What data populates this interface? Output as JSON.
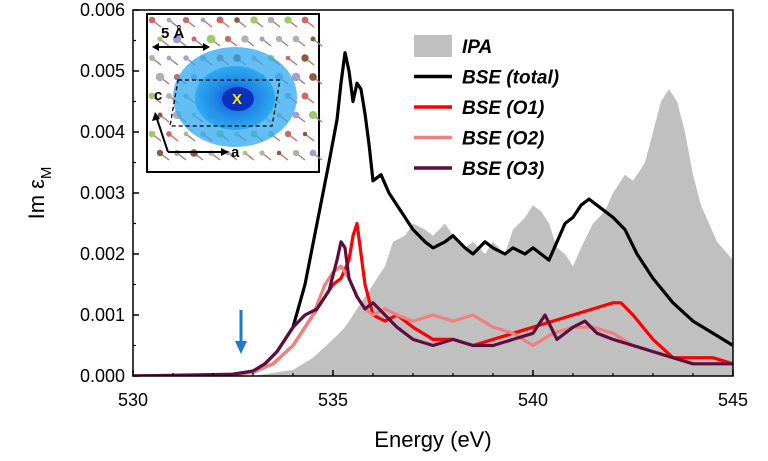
{
  "chart_data": {
    "type": "line",
    "xlabel": "Energy (eV)",
    "ylabel_main": "Im ε",
    "ylabel_sub": "M",
    "xlim": [
      530,
      545
    ],
    "ylim": [
      0,
      0.006
    ],
    "x_ticks": [
      530,
      535,
      540,
      545
    ],
    "x_tick_labels": [
      "530",
      "535",
      "540",
      "545"
    ],
    "y_ticks": [
      0,
      0.001,
      0.002,
      0.003,
      0.004,
      0.005,
      0.006
    ],
    "y_tick_labels": [
      "0.000",
      "0.001",
      "0.002",
      "0.003",
      "0.004",
      "0.005",
      "0.006"
    ],
    "arrow_energy": 532.7,
    "legend_position": "top-right",
    "series": [
      {
        "name": "IPA",
        "style": "area",
        "color": "#c0c0c0",
        "x": [
          530,
          532,
          533,
          533.5,
          534,
          534.5,
          535,
          535.3,
          535.5,
          535.8,
          536,
          536.3,
          536.5,
          536.8,
          537,
          537.3,
          537.5,
          537.8,
          538,
          538.3,
          538.5,
          538.8,
          539,
          539.3,
          539.5,
          539.8,
          540,
          540.2,
          540.4,
          540.6,
          540.8,
          541,
          541.2,
          541.5,
          541.8,
          542,
          542.3,
          542.5,
          542.8,
          543,
          543.2,
          543.4,
          543.6,
          543.8,
          544,
          544.2,
          544.4,
          544.6,
          545
        ],
        "y": [
          0,
          0,
          0.0,
          5e-05,
          0.0001,
          0.0003,
          0.0006,
          0.0008,
          0.001,
          0.0013,
          0.0015,
          0.0018,
          0.0022,
          0.0023,
          0.0025,
          0.0024,
          0.0023,
          0.0025,
          0.0023,
          0.0021,
          0.0022,
          0.002,
          0.0022,
          0.002,
          0.0024,
          0.0026,
          0.0028,
          0.0027,
          0.0025,
          0.0021,
          0.002,
          0.0018,
          0.0021,
          0.0025,
          0.0027,
          0.003,
          0.0033,
          0.0032,
          0.0035,
          0.004,
          0.0045,
          0.0047,
          0.0045,
          0.004,
          0.0033,
          0.0028,
          0.0025,
          0.0022,
          0.0019
        ]
      },
      {
        "name": "BSE (total)",
        "style": "line",
        "color": "#000000",
        "x": [
          530,
          532,
          532.5,
          533,
          533.3,
          533.6,
          534,
          534.3,
          534.6,
          534.9,
          535.1,
          535.2,
          535.3,
          535.4,
          535.5,
          535.6,
          535.7,
          535.8,
          535.9,
          536,
          536.2,
          536.4,
          536.6,
          536.8,
          537,
          537.3,
          537.5,
          537.8,
          538,
          538.3,
          538.5,
          538.8,
          539,
          539.3,
          539.5,
          539.8,
          540,
          540.2,
          540.4,
          540.6,
          540.8,
          541,
          541.2,
          541.4,
          541.6,
          541.8,
          542,
          542.3,
          542.6,
          543,
          543.5,
          544,
          544.5,
          545
        ],
        "y": [
          0,
          0,
          3e-05,
          8e-05,
          0.0002,
          0.0004,
          0.0008,
          0.0015,
          0.0025,
          0.0035,
          0.0042,
          0.0048,
          0.0053,
          0.005,
          0.0045,
          0.0048,
          0.0047,
          0.0043,
          0.0038,
          0.0032,
          0.0033,
          0.003,
          0.0028,
          0.0026,
          0.0024,
          0.0022,
          0.0021,
          0.0022,
          0.0023,
          0.0021,
          0.002,
          0.0022,
          0.0021,
          0.002,
          0.0021,
          0.002,
          0.0021,
          0.002,
          0.0019,
          0.0022,
          0.0025,
          0.0026,
          0.0028,
          0.0029,
          0.0028,
          0.0027,
          0.0026,
          0.0024,
          0.002,
          0.0016,
          0.0012,
          0.0009,
          0.0007,
          0.0005
        ]
      },
      {
        "name": "BSE (O1)",
        "style": "line",
        "color": "#ff0000",
        "x": [
          530,
          532.5,
          533,
          533.5,
          534,
          534.5,
          534.8,
          535,
          535.2,
          535.4,
          535.5,
          535.6,
          535.7,
          535.8,
          536,
          536.3,
          536.6,
          537,
          537.5,
          538,
          538.5,
          539,
          539.5,
          540,
          540.5,
          541,
          541.5,
          542,
          542.2,
          542.5,
          543,
          543.5,
          544,
          544.5,
          545
        ],
        "y": [
          0,
          2e-05,
          6e-05,
          0.0002,
          0.0005,
          0.001,
          0.0013,
          0.0015,
          0.0016,
          0.0019,
          0.0023,
          0.0025,
          0.002,
          0.0015,
          0.001,
          0.0009,
          0.001,
          0.0008,
          0.0006,
          0.0006,
          0.0005,
          0.0006,
          0.0007,
          0.0008,
          0.0009,
          0.001,
          0.0011,
          0.0012,
          0.0012,
          0.001,
          0.0006,
          0.0003,
          0.0003,
          0.0003,
          0.0002
        ]
      },
      {
        "name": "BSE (O2)",
        "style": "line",
        "color": "#f08080",
        "x": [
          530,
          532.5,
          533,
          533.5,
          534,
          534.5,
          534.8,
          535,
          535.2,
          535.4,
          535.6,
          535.8,
          536,
          536.3,
          536.6,
          537,
          537.5,
          538,
          538.5,
          539,
          539.5,
          540,
          540.5,
          541,
          541.5,
          542,
          542.5,
          543,
          543.5,
          544,
          544.5,
          545
        ],
        "y": [
          0,
          2e-05,
          6e-05,
          0.0002,
          0.0005,
          0.001,
          0.0015,
          0.0017,
          0.0018,
          0.0016,
          0.0013,
          0.0011,
          0.001,
          0.0011,
          0.001,
          0.0009,
          0.001,
          0.0009,
          0.001,
          0.0008,
          0.0007,
          0.0005,
          0.0007,
          0.0008,
          0.0008,
          0.0007,
          0.0005,
          0.0004,
          0.0003,
          0.0002,
          0.0002,
          0.0002
        ]
      },
      {
        "name": "BSE (O3)",
        "style": "line",
        "color": "#5c0e3e",
        "x": [
          530,
          532.5,
          533,
          533.3,
          533.6,
          534,
          534.3,
          534.6,
          534.9,
          535.1,
          535.2,
          535.3,
          535.4,
          535.6,
          535.8,
          536,
          536.3,
          536.6,
          537,
          537.5,
          538,
          538.5,
          539,
          539.5,
          540,
          540.3,
          540.6,
          541,
          541.3,
          541.6,
          542,
          542.5,
          543,
          543.5,
          544,
          544.5,
          545
        ],
        "y": [
          0,
          3e-05,
          8e-05,
          0.0002,
          0.0004,
          0.0008,
          0.001,
          0.0011,
          0.0014,
          0.0019,
          0.0022,
          0.0021,
          0.0016,
          0.0013,
          0.0011,
          0.0012,
          0.001,
          0.0008,
          0.0006,
          0.0005,
          0.0006,
          0.0005,
          0.0005,
          0.0006,
          0.0007,
          0.001,
          0.0006,
          0.0008,
          0.0009,
          0.0007,
          0.0006,
          0.0005,
          0.0004,
          0.0003,
          0.0002,
          0.0002,
          0.0002
        ]
      }
    ],
    "inset": {
      "scale_label": "5 Å",
      "axis_a": "a",
      "axis_c": "c",
      "site_marker": "X"
    }
  }
}
